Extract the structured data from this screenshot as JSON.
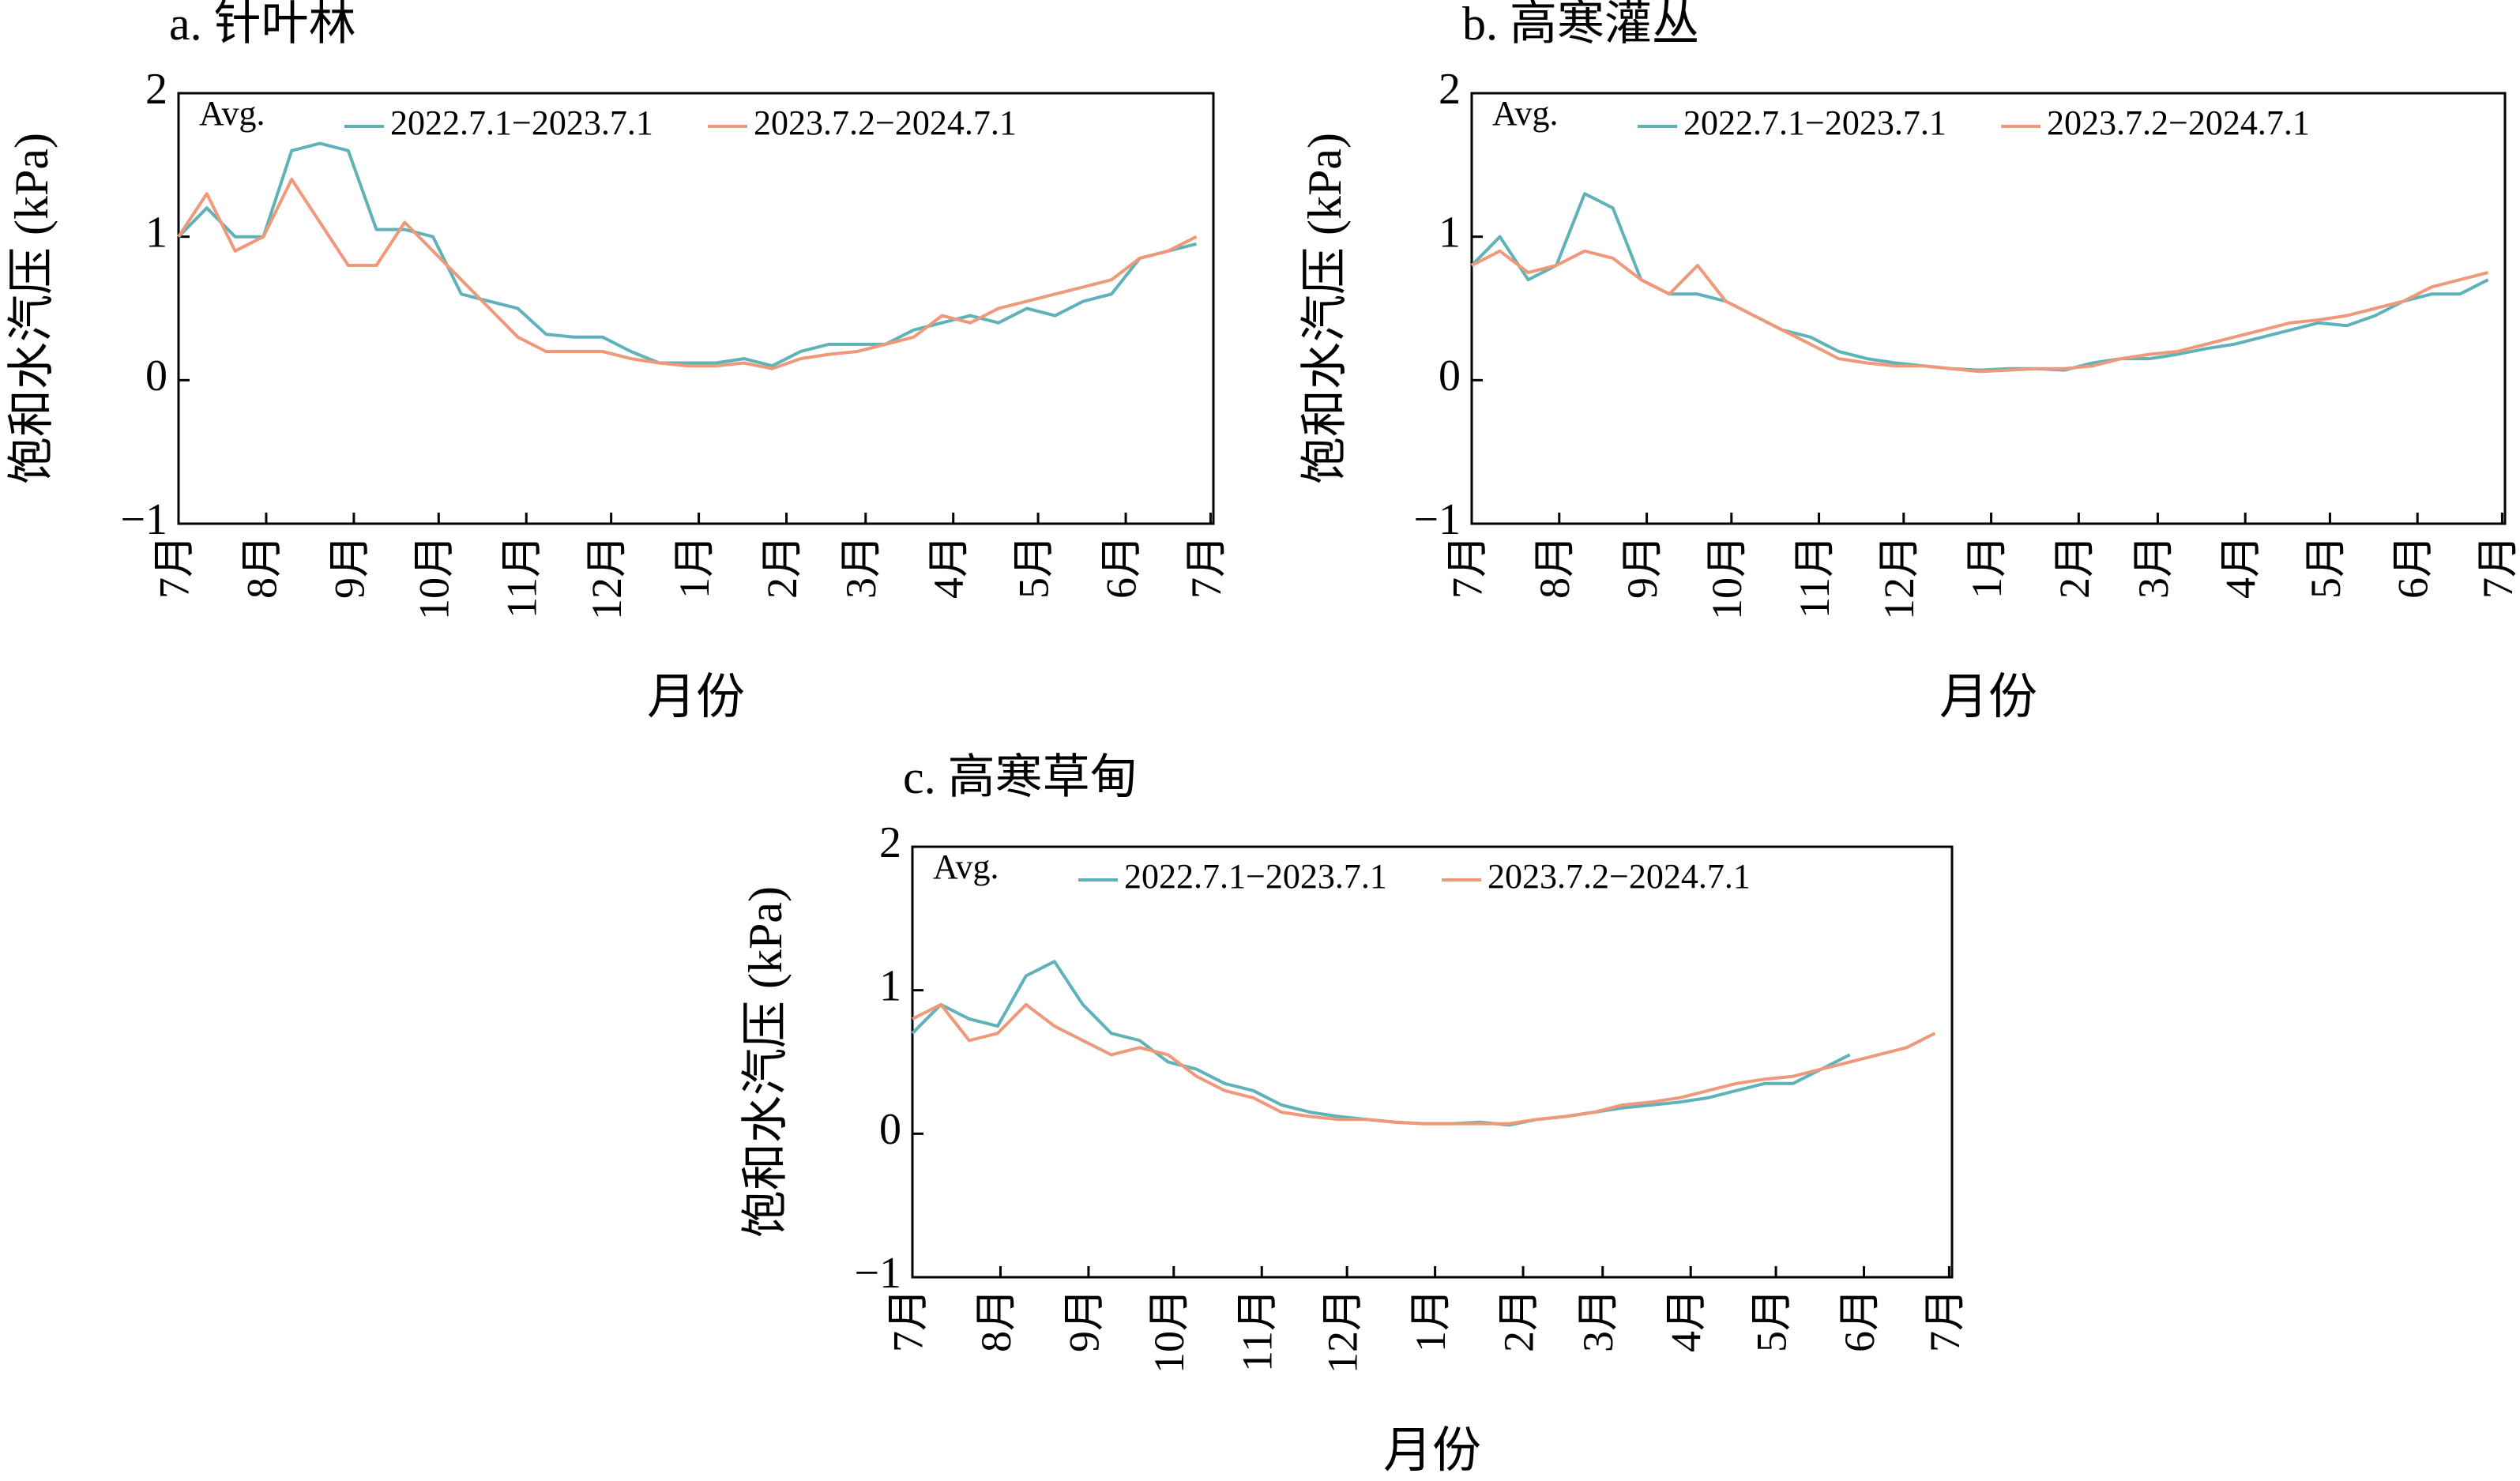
{
  "chart_data": [
    {
      "type": "line",
      "title": "a. 针叶林",
      "annotation": "Avg.",
      "xlabel": "月份",
      "ylabel": "饱和水汽压 (kPa)",
      "x": [
        0,
        10,
        20,
        30,
        40,
        50,
        60,
        70,
        80,
        90,
        100,
        110,
        120,
        130,
        140,
        150,
        160,
        170,
        180,
        190,
        200,
        210,
        220,
        230,
        240,
        250,
        260,
        270,
        280,
        290,
        300,
        310,
        320,
        330,
        340,
        350,
        360
      ],
      "xlim": [
        0,
        366
      ],
      "xticks": [
        {
          "value": 0,
          "label": "7月"
        },
        {
          "value": 31,
          "label": "8月"
        },
        {
          "value": 62,
          "label": "9月"
        },
        {
          "value": 92,
          "label": "10月"
        },
        {
          "value": 123,
          "label": "11月"
        },
        {
          "value": 153,
          "label": "12月"
        },
        {
          "value": 184,
          "label": "1月"
        },
        {
          "value": 215,
          "label": "2月"
        },
        {
          "value": 243,
          "label": "3月"
        },
        {
          "value": 274,
          "label": "4月"
        },
        {
          "value": 304,
          "label": "5月"
        },
        {
          "value": 335,
          "label": "6月"
        },
        {
          "value": 365,
          "label": "7月"
        }
      ],
      "ylim": [
        -1,
        2
      ],
      "yticks": [
        {
          "value": -1,
          "label": "−1"
        },
        0,
        1,
        2
      ],
      "series": [
        {
          "name": "2022.7.1−2023.7.1",
          "color": "#5fb3b8",
          "values": [
            1.0,
            1.2,
            1.0,
            1.0,
            1.6,
            1.65,
            1.6,
            1.05,
            1.05,
            1.0,
            0.6,
            0.55,
            0.5,
            0.32,
            0.3,
            0.3,
            0.2,
            0.12,
            0.12,
            0.12,
            0.15,
            0.1,
            0.2,
            0.25,
            0.25,
            0.25,
            0.35,
            0.4,
            0.45,
            0.4,
            0.5,
            0.45,
            0.55,
            0.6,
            0.85,
            0.9,
            0.95
          ]
        },
        {
          "name": "2023.7.2−2024.7.1",
          "color": "#f0987a",
          "values": [
            1.0,
            1.3,
            0.9,
            1.0,
            1.4,
            1.1,
            0.8,
            0.8,
            1.1,
            0.9,
            0.7,
            0.5,
            0.3,
            0.2,
            0.2,
            0.2,
            0.15,
            0.12,
            0.1,
            0.1,
            0.12,
            0.08,
            0.15,
            0.18,
            0.2,
            0.25,
            0.3,
            0.45,
            0.4,
            0.5,
            0.55,
            0.6,
            0.65,
            0.7,
            0.85,
            0.9,
            1.0
          ]
        }
      ]
    },
    {
      "type": "line",
      "title": "b. 高寒灌丛",
      "annotation": "Avg.",
      "xlabel": "月份",
      "ylabel": "饱和水汽压 (kPa)",
      "x": [
        0,
        10,
        20,
        30,
        40,
        50,
        60,
        70,
        80,
        90,
        100,
        110,
        120,
        130,
        140,
        150,
        160,
        170,
        180,
        190,
        200,
        210,
        220,
        230,
        240,
        250,
        260,
        270,
        280,
        290,
        300,
        310,
        320,
        330,
        340,
        350,
        360
      ],
      "xlim": [
        0,
        366
      ],
      "xticks": [
        {
          "value": 0,
          "label": "7月"
        },
        {
          "value": 31,
          "label": "8月"
        },
        {
          "value": 62,
          "label": "9月"
        },
        {
          "value": 92,
          "label": "10月"
        },
        {
          "value": 123,
          "label": "11月"
        },
        {
          "value": 153,
          "label": "12月"
        },
        {
          "value": 184,
          "label": "1月"
        },
        {
          "value": 215,
          "label": "2月"
        },
        {
          "value": 243,
          "label": "3月"
        },
        {
          "value": 274,
          "label": "4月"
        },
        {
          "value": 304,
          "label": "5月"
        },
        {
          "value": 335,
          "label": "6月"
        },
        {
          "value": 365,
          "label": "7月"
        }
      ],
      "ylim": [
        -1,
        2
      ],
      "yticks": [
        {
          "value": -1,
          "label": "−1"
        },
        0,
        1,
        2
      ],
      "series": [
        {
          "name": "2022.7.1−2023.7.1",
          "color": "#5fb3b8",
          "values": [
            0.8,
            1.0,
            0.7,
            0.8,
            1.3,
            1.2,
            0.7,
            0.6,
            0.6,
            0.55,
            0.45,
            0.35,
            0.3,
            0.2,
            0.15,
            0.12,
            0.1,
            0.08,
            0.07,
            0.08,
            0.08,
            0.07,
            0.12,
            0.15,
            0.15,
            0.18,
            0.22,
            0.25,
            0.3,
            0.35,
            0.4,
            0.38,
            0.45,
            0.55,
            0.6,
            0.6,
            0.7
          ]
        },
        {
          "name": "2023.7.2−2024.7.1",
          "color": "#f0987a",
          "values": [
            0.8,
            0.9,
            0.75,
            0.8,
            0.9,
            0.85,
            0.7,
            0.6,
            0.8,
            0.55,
            0.45,
            0.35,
            0.25,
            0.15,
            0.12,
            0.1,
            0.1,
            0.08,
            0.06,
            0.07,
            0.08,
            0.08,
            0.1,
            0.15,
            0.18,
            0.2,
            0.25,
            0.3,
            0.35,
            0.4,
            0.42,
            0.45,
            0.5,
            0.55,
            0.65,
            0.7,
            0.75
          ]
        }
      ]
    },
    {
      "type": "line",
      "title": "c. 高寒草甸",
      "annotation": "Avg.",
      "xlabel": "月份",
      "ylabel": "饱和水汽压 (kPa)",
      "x": [
        0,
        10,
        20,
        30,
        40,
        50,
        60,
        70,
        80,
        90,
        100,
        110,
        120,
        130,
        140,
        150,
        160,
        170,
        180,
        190,
        200,
        210,
        220,
        230,
        240,
        250,
        260,
        270,
        280,
        290,
        300,
        310,
        320,
        330,
        340,
        350,
        360
      ],
      "xlim": [
        0,
        366
      ],
      "xticks": [
        {
          "value": 0,
          "label": "7月"
        },
        {
          "value": 31,
          "label": "8月"
        },
        {
          "value": 62,
          "label": "9月"
        },
        {
          "value": 92,
          "label": "10月"
        },
        {
          "value": 123,
          "label": "11月"
        },
        {
          "value": 153,
          "label": "12月"
        },
        {
          "value": 184,
          "label": "1月"
        },
        {
          "value": 215,
          "label": "2月"
        },
        {
          "value": 243,
          "label": "3月"
        },
        {
          "value": 274,
          "label": "4月"
        },
        {
          "value": 304,
          "label": "5月"
        },
        {
          "value": 335,
          "label": "6月"
        },
        {
          "value": 365,
          "label": "7月"
        }
      ],
      "ylim": [
        -1,
        2
      ],
      "yticks": [
        {
          "value": -1,
          "label": "−1"
        },
        0,
        1,
        2
      ],
      "series": [
        {
          "name": "2022.7.1−2023.7.1",
          "color": "#5fb3b8",
          "values": [
            0.7,
            0.9,
            0.8,
            0.75,
            1.1,
            1.2,
            0.9,
            0.7,
            0.65,
            0.5,
            0.45,
            0.35,
            0.3,
            0.2,
            0.15,
            0.12,
            0.1,
            0.08,
            0.07,
            0.07,
            0.08,
            0.06,
            0.1,
            0.12,
            0.15,
            0.18,
            0.2,
            0.22,
            0.25,
            0.3,
            0.35,
            0.35,
            0.45,
            0.55,
            null,
            null,
            null
          ]
        },
        {
          "name": "2023.7.2−2024.7.1",
          "color": "#f0987a",
          "values": [
            0.8,
            0.9,
            0.65,
            0.7,
            0.9,
            0.75,
            0.65,
            0.55,
            0.6,
            0.55,
            0.4,
            0.3,
            0.25,
            0.15,
            0.12,
            0.1,
            0.1,
            0.08,
            0.07,
            0.07,
            0.07,
            0.07,
            0.1,
            0.12,
            0.15,
            0.2,
            0.22,
            0.25,
            0.3,
            0.35,
            0.38,
            0.4,
            0.45,
            0.5,
            0.55,
            0.6,
            0.7
          ]
        }
      ]
    }
  ]
}
